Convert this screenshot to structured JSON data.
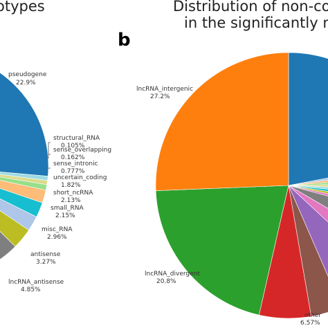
{
  "panel_a": {
    "title_fragment": "otypes"
  },
  "panel_b": {
    "letter": "b",
    "title_line1": "Distribution of non-coding l",
    "title_line2": "in the significantly mutate"
  },
  "chart_data": [
    {
      "type": "pie",
      "panel": "a",
      "title": "otypes",
      "slices": [
        {
          "label": "pseudogene",
          "value": 22.9,
          "value_text": "22.9%",
          "color": "#1f77b4"
        },
        {
          "label": "structural_RNA",
          "value": 0.105,
          "value_text": "0.105%",
          "color": "#9edae5"
        },
        {
          "label": "sense_overlapping",
          "value": 0.162,
          "value_text": "0.162%",
          "color": "#dbdb8d"
        },
        {
          "label": "sense_intronic",
          "value": 0.777,
          "value_text": "0.777%",
          "color": "#98df8a"
        },
        {
          "label": "uncertain_coding",
          "value": 1.82,
          "value_text": "1.82%",
          "color": "#ffbb78"
        },
        {
          "label": "short_ncRNA",
          "value": 2.13,
          "value_text": "2.13%",
          "color": "#17becf"
        },
        {
          "label": "small_RNA",
          "value": 2.15,
          "value_text": "2.15%",
          "color": "#aec7e8"
        },
        {
          "label": "misc_RNA",
          "value": 2.96,
          "value_text": "2.96%",
          "color": "#bcbd22"
        },
        {
          "label": "antisense",
          "value": 3.27,
          "value_text": "3.27%",
          "color": "#7f7f7f"
        },
        {
          "label": "lncRNA_antisense",
          "value": 4.85,
          "value_text": "4.85%",
          "color": "#e377c2"
        }
      ]
    },
    {
      "type": "pie",
      "panel": "b",
      "title": "Distribution of non-coding l in the significantly mutate",
      "slices": [
        {
          "label": "lncRNA_intergenic",
          "value": 27.2,
          "value_text": "27.2%",
          "color": "#ff7f0e"
        },
        {
          "label": "lncRNA_divergent",
          "value": 20.8,
          "value_text": "20.8%",
          "color": "#2ca02c"
        },
        {
          "label": "other",
          "value": 6.57,
          "value_text": "6.57%",
          "color": "#9467bd"
        }
      ]
    }
  ]
}
